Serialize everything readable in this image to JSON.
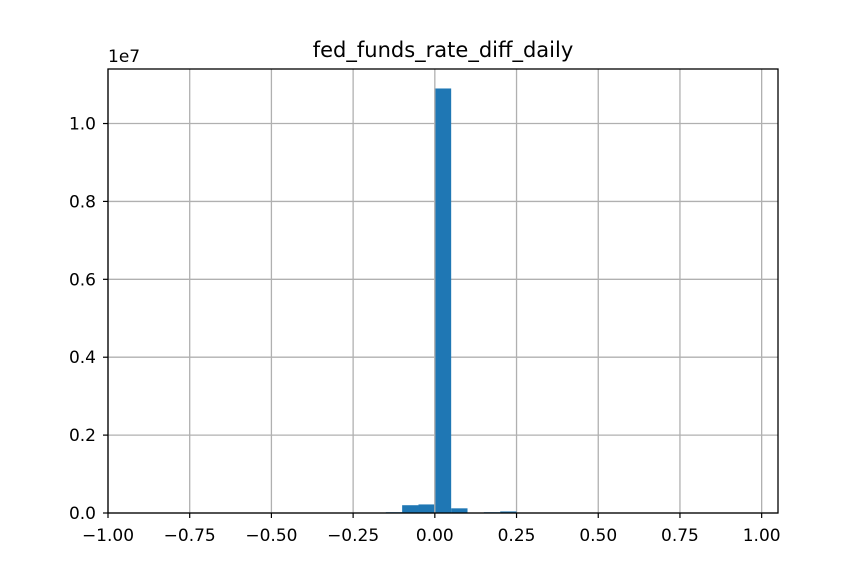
{
  "chart_data": {
    "type": "bar",
    "title": "fed_funds_rate_diff_daily",
    "xlabel": "",
    "ylabel": "",
    "y_offset_label": "1e7",
    "xlim": [
      -1.0,
      1.05
    ],
    "ylim": [
      0,
      1.14
    ],
    "x_ticks": [
      -1.0,
      -0.75,
      -0.5,
      -0.25,
      0.0,
      0.25,
      0.5,
      0.75,
      1.0
    ],
    "x_tick_labels": [
      "−1.00",
      "−0.75",
      "−0.50",
      "−0.25",
      "0.00",
      "0.25",
      "0.50",
      "0.75",
      "1.00"
    ],
    "y_ticks": [
      0.0,
      0.2,
      0.4,
      0.6,
      0.8,
      1.0
    ],
    "y_tick_labels": [
      "0.0",
      "0.2",
      "0.4",
      "0.6",
      "0.8",
      "1.0"
    ],
    "grid": true,
    "bar_color": "#1f77b4",
    "bars": [
      {
        "x0": -0.15,
        "x1": -0.1,
        "value": 0.002
      },
      {
        "x0": -0.1,
        "x1": -0.05,
        "value": 0.02
      },
      {
        "x0": -0.05,
        "x1": -0.0,
        "value": 0.022
      },
      {
        "x0": -0.0,
        "x1": 0.05,
        "value": 1.09
      },
      {
        "x0": 0.05,
        "x1": 0.1,
        "value": 0.012
      },
      {
        "x0": 0.15,
        "x1": 0.2,
        "value": 0.002
      },
      {
        "x0": 0.2,
        "x1": 0.25,
        "value": 0.004
      }
    ]
  }
}
